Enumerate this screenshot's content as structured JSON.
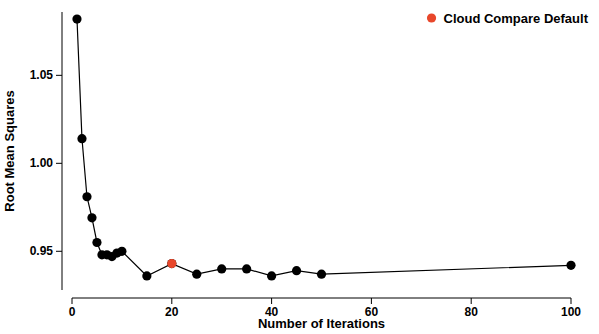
{
  "chart_data": {
    "type": "line",
    "x_label": "Number of Iterations",
    "y_label": "Root Mean Squares",
    "x": [
      1,
      2,
      3,
      4,
      5,
      6,
      7,
      8,
      9,
      10,
      15,
      20,
      25,
      30,
      35,
      40,
      45,
      50,
      100
    ],
    "series": [
      {
        "color": "#000000",
        "marker": "circle",
        "line_style": "solid",
        "values": [
          1.082,
          1.014,
          0.981,
          0.969,
          0.955,
          0.948,
          0.948,
          0.947,
          0.949,
          0.95,
          0.936,
          0.943,
          0.937,
          0.94,
          0.94,
          0.936,
          0.939,
          0.937,
          0.942
        ]
      },
      {
        "name": "Cloud Compare Default",
        "type": "scatter",
        "color": "#e8472b",
        "marker": "circle",
        "values": [
          null,
          null,
          null,
          null,
          null,
          null,
          null,
          null,
          null,
          null,
          null,
          0.943,
          null,
          null,
          null,
          null,
          null,
          null,
          null
        ]
      }
    ],
    "xlim": [
      0,
      100
    ],
    "xticks": [
      0,
      20,
      40,
      60,
      80,
      100
    ],
    "ylim": [
      0.928,
      1.086
    ],
    "yticks": [
      0.95,
      {
        "value": 1,
        "label": "1.00"
      },
      1.05
    ],
    "legend": "top-right",
    "grid": false
  }
}
